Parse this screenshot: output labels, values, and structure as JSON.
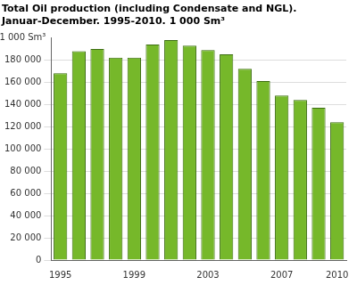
{
  "chart_data": {
    "type": "bar",
    "title": [
      "Total Oil production (including Condensate and NGL).",
      "Januar-December. 1995-2010. 1 000 Sm³"
    ],
    "y_label": "1 000 Sm³",
    "categories": [
      "1995",
      null,
      null,
      null,
      "1999",
      null,
      null,
      null,
      "2003",
      null,
      null,
      null,
      "2007",
      null,
      null,
      "2010"
    ],
    "values": [
      168000,
      188000,
      190000,
      182000,
      182000,
      194000,
      198000,
      193000,
      189000,
      185000,
      172000,
      161000,
      148000,
      144000,
      137000,
      124000
    ],
    "color": "#76b82a",
    "ylim": [
      0,
      200000
    ],
    "yticks": [
      0,
      {
        "value": 20000,
        "label": "20 000"
      },
      {
        "value": 40000,
        "label": "40 000"
      },
      {
        "value": 60000,
        "label": "60 000"
      },
      {
        "value": 80000,
        "label": "80 000"
      },
      {
        "value": 100000,
        "label": "100 000"
      },
      {
        "value": 120000,
        "label": "120 000"
      },
      {
        "value": 140000,
        "label": "140 000"
      },
      {
        "value": 160000,
        "label": "160 000"
      },
      {
        "value": 180000,
        "label": "180 000"
      }
    ],
    "grid": true
  }
}
